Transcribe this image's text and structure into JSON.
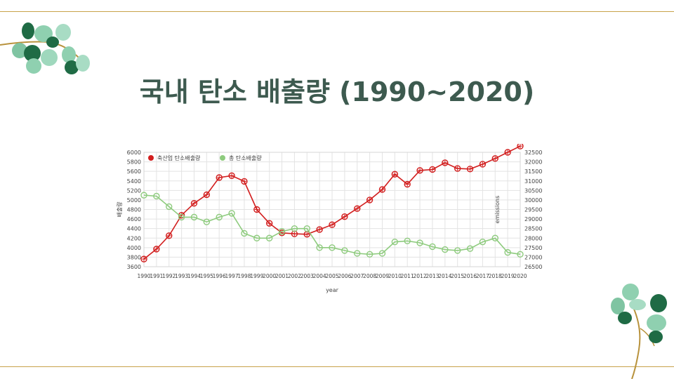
{
  "slide": {
    "title": "국내 탄소 배출량 (1990~2020)"
  },
  "colors": {
    "rule": "#c8a24a",
    "title": "#3d5a4f",
    "series1": "#d21e1e",
    "series2": "#8ecb7e",
    "grid": "#e3e3e3"
  },
  "chart_data": {
    "type": "line",
    "title": "",
    "xlabel": "year",
    "ylabel_left": "배출량",
    "ylabel_right": "emissions",
    "x": [
      1990,
      1991,
      1992,
      1993,
      1994,
      1995,
      1996,
      1997,
      1998,
      1999,
      2000,
      2001,
      2002,
      2003,
      2004,
      2005,
      2006,
      2007,
      2008,
      2009,
      2010,
      2011,
      2012,
      2013,
      2014,
      2015,
      2016,
      2017,
      2018,
      2019,
      2020
    ],
    "ylim_left": [
      3600,
      6000
    ],
    "yticks_left": [
      3600,
      3800,
      4000,
      4200,
      4400,
      4600,
      4800,
      5000,
      5200,
      5400,
      5600,
      5800,
      6000
    ],
    "ylim_right": [
      26500,
      32500
    ],
    "yticks_right": [
      26500,
      27000,
      27500,
      28000,
      28500,
      29000,
      29500,
      30000,
      30500,
      31000,
      31500,
      32000,
      32500
    ],
    "grid": true,
    "legend_position": "top-left",
    "series": [
      {
        "name": "축산업 탄소배출량",
        "axis": "left",
        "values": [
          3760,
          3970,
          4250,
          4680,
          4930,
          5110,
          5470,
          5510,
          5390,
          4800,
          4510,
          4310,
          4290,
          4280,
          4380,
          4480,
          4650,
          4820,
          5000,
          5220,
          5540,
          5330,
          5620,
          5640,
          5780,
          5660,
          5650,
          5750,
          5870,
          6000,
          6130
        ]
      },
      {
        "name": "총 탄소배출량",
        "axis": "right",
        "values": [
          30250,
          30200,
          29650,
          29100,
          29100,
          28850,
          29100,
          29300,
          28250,
          28000,
          28000,
          28350,
          28500,
          28500,
          27500,
          27500,
          27350,
          27200,
          27150,
          27200,
          27800,
          27850,
          27750,
          27550,
          27400,
          27350,
          27450,
          27800,
          28000,
          27250,
          27150
        ]
      }
    ]
  }
}
